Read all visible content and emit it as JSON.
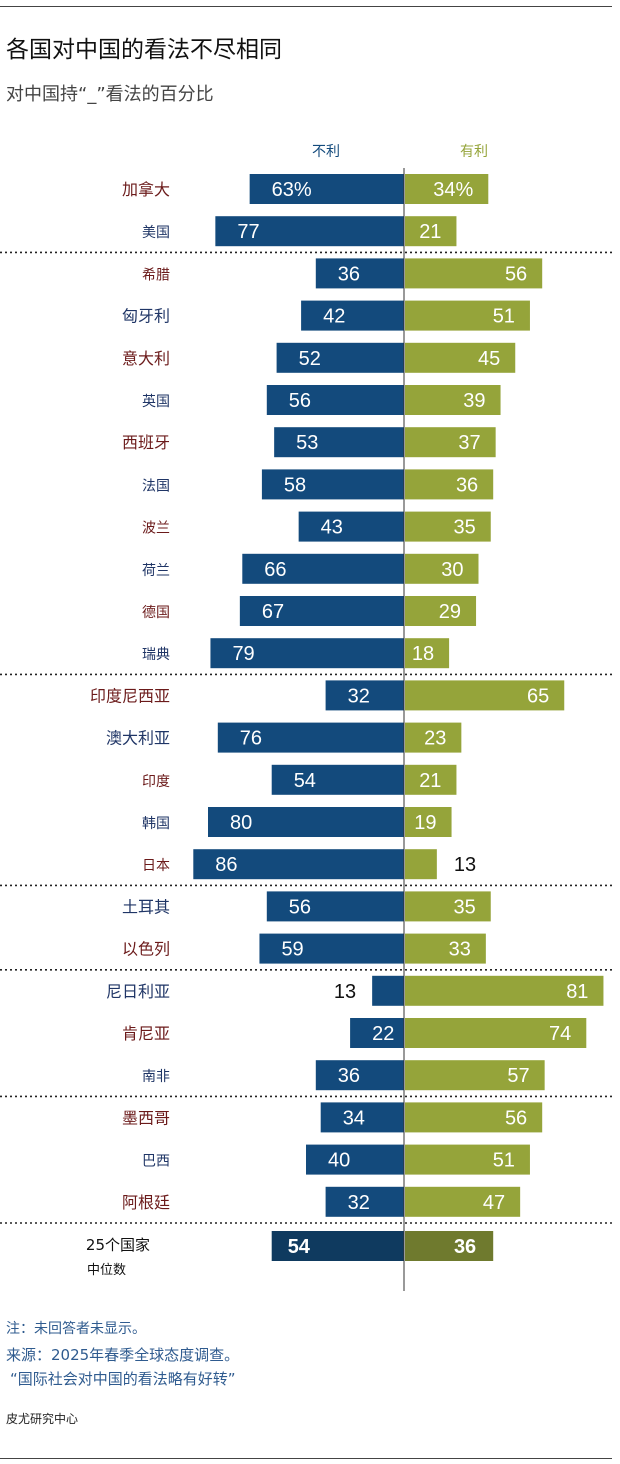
{
  "header": {
    "title": "各国对中国的看法不尽相同",
    "subtitle": "对中国持“_”看法的百分比"
  },
  "footer": {
    "note": "注：未回答者未显示。",
    "source": "来源：2025年春季全球态度调查。",
    "report": "“国际社会对中国的看法略有好转”",
    "credit": "皮尤研究中心"
  },
  "colors": {
    "unfavorable": "#134a7c",
    "favorable": "#95a43a",
    "median_unfavorable": "#0f3a5f",
    "median_favorable": "#6f7a2e",
    "label_dark_red": "#6b1a1a",
    "label_navy": "#1f3566"
  },
  "chart_data": {
    "type": "bar",
    "orientation": "horizontal-diverging",
    "legend": {
      "unfavorable": "不利",
      "favorable": "有利"
    },
    "series": [
      {
        "name": "不利",
        "key": "unfavorable"
      },
      {
        "name": "有利",
        "key": "favorable"
      }
    ],
    "groups": [
      {
        "rows": [
          {
            "country": "加拿大",
            "unfavorable": 63,
            "favorable": 34,
            "unf_label": "63%",
            "fav_label": "34%"
          },
          {
            "country": "美国",
            "unfavorable": 77,
            "favorable": 21
          }
        ]
      },
      {
        "rows": [
          {
            "country": "希腊",
            "unfavorable": 36,
            "favorable": 56
          },
          {
            "country": "匈牙利",
            "unfavorable": 42,
            "favorable": 51
          },
          {
            "country": "意大利",
            "unfavorable": 52,
            "favorable": 45
          },
          {
            "country": "英国",
            "unfavorable": 56,
            "favorable": 39
          },
          {
            "country": "西班牙",
            "unfavorable": 53,
            "favorable": 37
          },
          {
            "country": "法国",
            "unfavorable": 58,
            "favorable": 36
          },
          {
            "country": "波兰",
            "unfavorable": 43,
            "favorable": 35
          },
          {
            "country": "荷兰",
            "unfavorable": 66,
            "favorable": 30
          },
          {
            "country": "德国",
            "unfavorable": 67,
            "favorable": 29
          },
          {
            "country": "瑞典",
            "unfavorable": 79,
            "favorable": 18
          }
        ]
      },
      {
        "rows": [
          {
            "country": "印度尼西亚",
            "unfavorable": 32,
            "favorable": 65
          },
          {
            "country": "澳大利亚",
            "unfavorable": 76,
            "favorable": 23
          },
          {
            "country": "印度",
            "unfavorable": 54,
            "favorable": 21
          },
          {
            "country": "韩国",
            "unfavorable": 80,
            "favorable": 19
          },
          {
            "country": "日本",
            "unfavorable": 86,
            "favorable": 13
          }
        ]
      },
      {
        "rows": [
          {
            "country": "土耳其",
            "unfavorable": 56,
            "favorable": 35
          },
          {
            "country": "以色列",
            "unfavorable": 59,
            "favorable": 33
          }
        ]
      },
      {
        "rows": [
          {
            "country": "尼日利亚",
            "unfavorable": 13,
            "favorable": 81
          },
          {
            "country": "肯尼亚",
            "unfavorable": 22,
            "favorable": 74
          },
          {
            "country": "南非",
            "unfavorable": 36,
            "favorable": 57
          }
        ]
      },
      {
        "rows": [
          {
            "country": "墨西哥",
            "unfavorable": 34,
            "favorable": 56
          },
          {
            "country": "巴西",
            "unfavorable": 40,
            "favorable": 51
          },
          {
            "country": "阿根廷",
            "unfavorable": 32,
            "favorable": 47
          }
        ]
      }
    ],
    "median": {
      "label_line1": "25个国家",
      "label_line2": "中位数",
      "unfavorable": 54,
      "favorable": 36
    }
  }
}
